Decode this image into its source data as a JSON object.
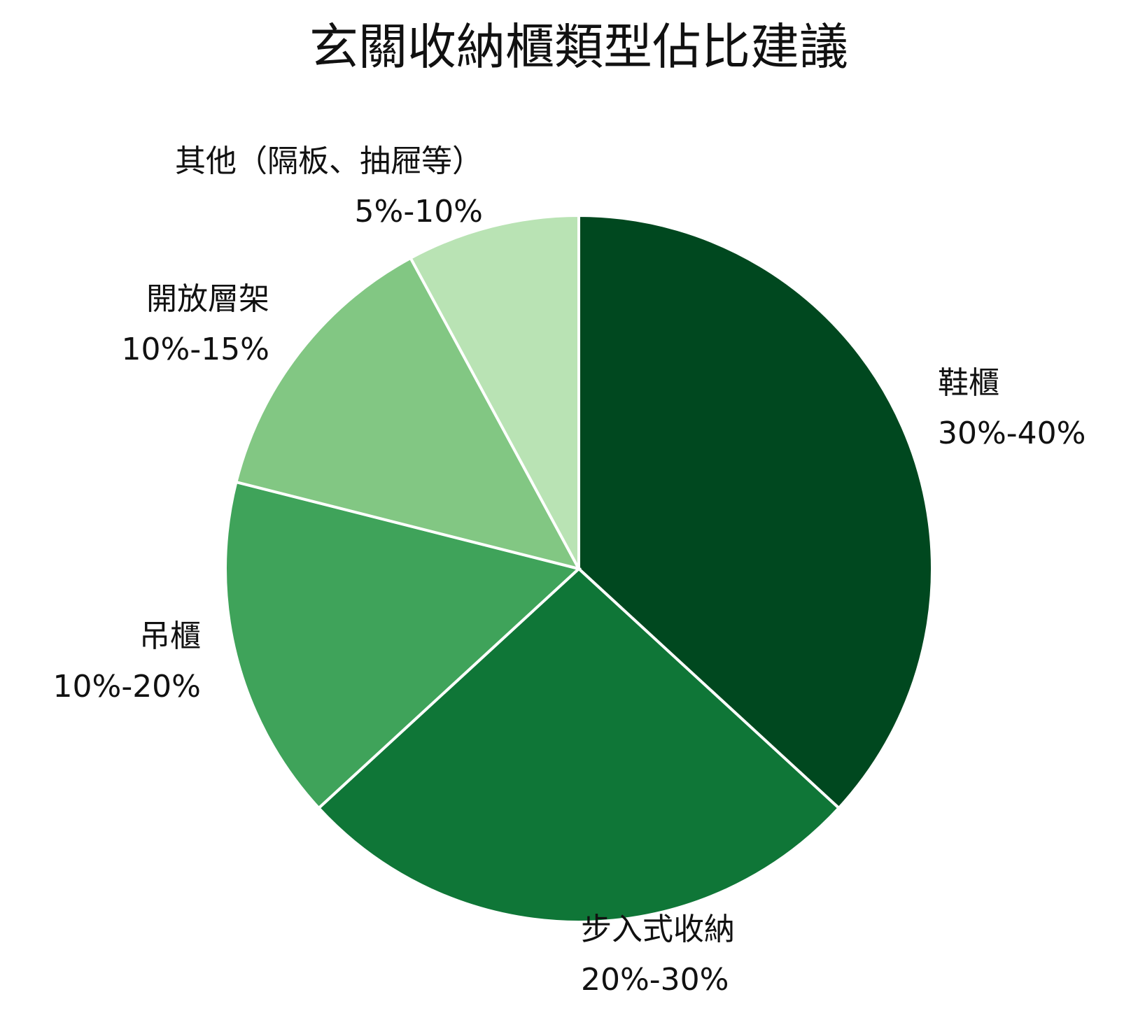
{
  "chart_data": {
    "type": "pie",
    "title": "玄關收納櫃類型佔比建議",
    "categories": [
      "鞋櫃",
      "步入式收納",
      "吊櫃",
      "開放層架",
      "其他（隔板、抽屜等）"
    ],
    "values": [
      35,
      25,
      15,
      12.5,
      7.5
    ],
    "value_labels": [
      "30%-40%",
      "20%-30%",
      "10%-20%",
      "10%-15%",
      "5%-10%"
    ],
    "colors": [
      "#00481f",
      "#0f7637",
      "#3fa35a",
      "#82c783",
      "#b9e3b4"
    ]
  }
}
